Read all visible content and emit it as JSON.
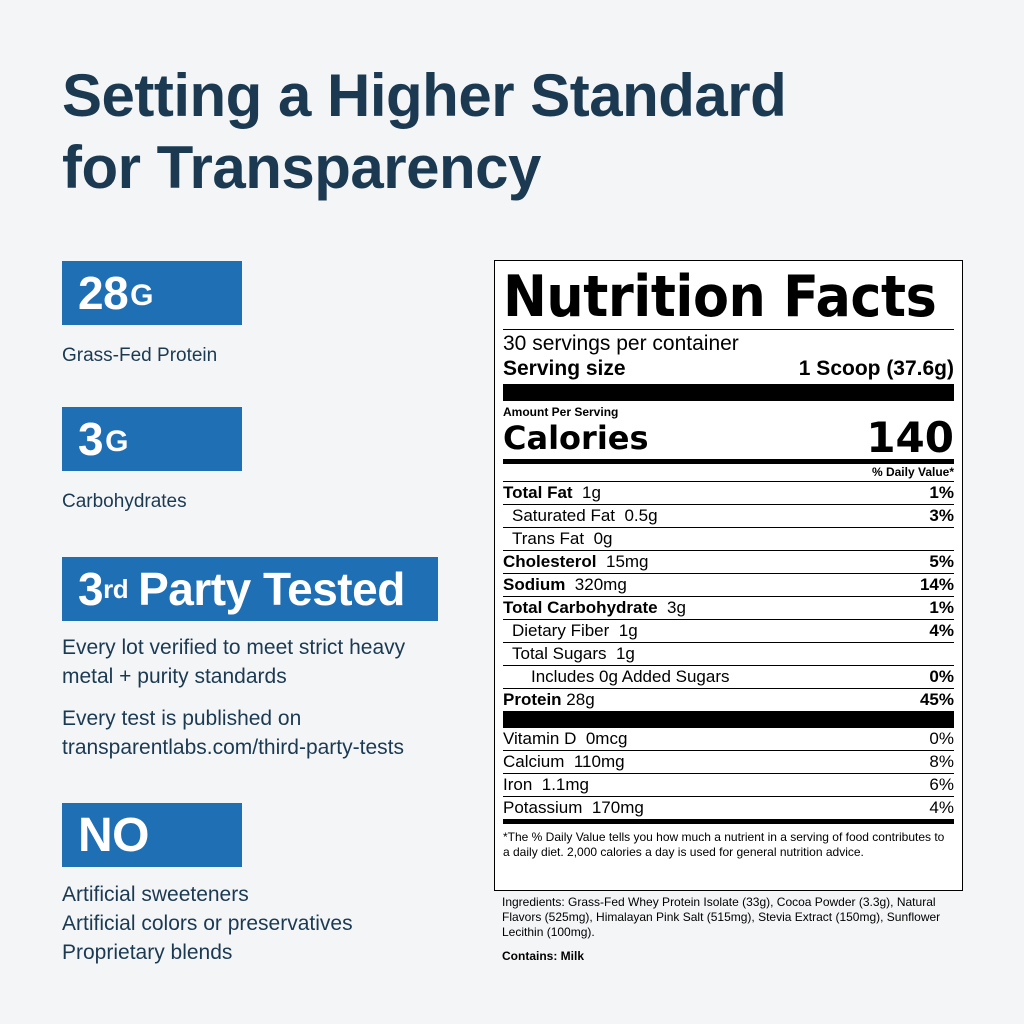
{
  "headline": {
    "line1": "Setting a Higher Standard",
    "line2": "for Transparency"
  },
  "stats": [
    {
      "value": "28",
      "unit": "G",
      "desc": "Grass-Fed Protein"
    },
    {
      "value": "3",
      "unit": "G",
      "desc": "Carbohydrates"
    }
  ],
  "tested": {
    "ordinal_num": "3",
    "ordinal_suffix": "rd",
    "label": "Party Tested",
    "desc1": "Every lot verified to meet strict heavy metal + purity standards",
    "desc2": "Every test is published on transparentlabs.com/third-party-tests"
  },
  "no_block": {
    "label": "NO",
    "items": [
      "Artificial sweeteners",
      "Artificial colors or preservatives",
      "Proprietary blends"
    ]
  },
  "nutrition": {
    "title": "Nutrition Facts",
    "servings": "30 servings per container",
    "serving_size_label": "Serving size",
    "serving_size_value": "1 Scoop (37.6g)",
    "amount_per": "Amount Per Serving",
    "calories_label": "Calories",
    "calories_value": "140",
    "dv_header": "% Daily Value*",
    "rows": [
      {
        "name": "Total Fat",
        "amount": "1g",
        "pct": "1%"
      },
      {
        "name": "Saturated Fat",
        "amount": "0.5g",
        "pct": "3%"
      },
      {
        "name": "Trans Fat",
        "amount": "0g",
        "pct": ""
      },
      {
        "name": "Cholesterol",
        "amount": "15mg",
        "pct": "5%"
      },
      {
        "name": "Sodium",
        "amount": "320mg",
        "pct": "14%"
      },
      {
        "name": "Total Carbohydrate",
        "amount": "3g",
        "pct": "1%"
      },
      {
        "name": "Dietary Fiber",
        "amount": "1g",
        "pct": "4%"
      },
      {
        "name": "Total Sugars",
        "amount": "1g",
        "pct": ""
      },
      {
        "name": "Includes 0g Added Sugars",
        "amount": "",
        "pct": "0%"
      },
      {
        "name": "Protein",
        "amount": "28g",
        "pct": "45%"
      }
    ],
    "vitamins": [
      {
        "name": "Vitamin D",
        "amount": "0mcg",
        "pct": "0%"
      },
      {
        "name": "Calcium",
        "amount": "110mg",
        "pct": "8%"
      },
      {
        "name": "Iron",
        "amount": "1.1mg",
        "pct": "6%"
      },
      {
        "name": "Potassium",
        "amount": "170mg",
        "pct": "4%"
      }
    ],
    "footnote": "*The % Daily Value tells you how much a nutrient in a serving of food contributes to a daily diet. 2,000 calories a day is used for general nutrition advice."
  },
  "ingredients": "Ingredients: Grass-Fed Whey Protein Isolate (33g), Cocoa Powder (3.3g), Natural Flavors (525mg), Himalayan Pink Salt (515mg), Stevia Extract (150mg), Sunflower Lecithin (100mg).",
  "contains": "Contains: Milk",
  "colors": {
    "accent": "#1f6fb5",
    "text": "#1b3a52",
    "background": "#f4f5f7"
  }
}
